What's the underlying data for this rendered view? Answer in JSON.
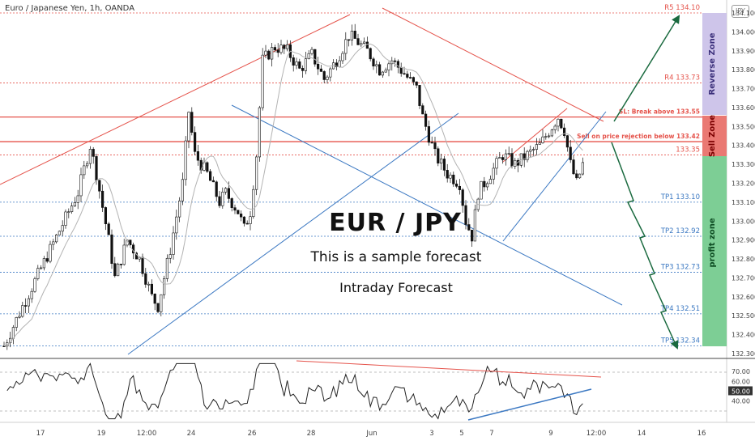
{
  "header": {
    "pair": "Euro / Japanese Yen, 1h, OANDA",
    "logo": "JPY"
  },
  "texts": {
    "main_title": "EUR / JPY",
    "subtitle": "This is a sample forecast",
    "forecast_type": "Intraday Forecast"
  },
  "zones": {
    "reverse": "Reverse Zone",
    "sell": "Sell Zone",
    "profit": "profit zone"
  },
  "colors": {
    "resistance": "#e5534b",
    "support": "#3b78c2",
    "profit_zone": "#3aa55d",
    "reverse_zone": "#9d8ed0",
    "sell_zone": "#e5534b",
    "forecast_arrow": "#1a6a3f"
  },
  "chart_data": [
    {
      "type": "line",
      "instrument": "Euro / Japanese Yen, 1h, OANDA",
      "price_axis": {
        "ticks": [
          "134.100",
          "134.000",
          "133.900",
          "133.800",
          "133.700",
          "133.600",
          "133.500",
          "133.400",
          "133.300",
          "133.200",
          "133.100",
          "133.000",
          "132.900",
          "132.800",
          "132.700",
          "132.600",
          "132.500",
          "132.400",
          "132.300"
        ],
        "range": [
          132.28,
          134.15
        ]
      },
      "time_axis": {
        "ticks": [
          "17",
          "19",
          "12:00",
          "24",
          "26",
          "28",
          "Jun",
          "3",
          "5",
          "7",
          "9",
          "12:00",
          "14",
          "16"
        ]
      },
      "price_path": [
        [
          0,
          132.34
        ],
        [
          3,
          132.55
        ],
        [
          6,
          132.75
        ],
        [
          9,
          132.95
        ],
        [
          12,
          133.15
        ],
        [
          14,
          133.4
        ],
        [
          15,
          133.25
        ],
        [
          17,
          132.9
        ],
        [
          18,
          132.7
        ],
        [
          20,
          132.9
        ],
        [
          22,
          132.8
        ],
        [
          24,
          132.6
        ],
        [
          25,
          132.55
        ],
        [
          27,
          132.85
        ],
        [
          29,
          133.2
        ],
        [
          30,
          133.58
        ],
        [
          31,
          133.35
        ],
        [
          33,
          133.25
        ],
        [
          35,
          133.1
        ],
        [
          36,
          133.15
        ],
        [
          38,
          133.05
        ],
        [
          39,
          132.96
        ],
        [
          40,
          133.05
        ],
        [
          41,
          133.35
        ],
        [
          42,
          133.85
        ],
        [
          44,
          133.92
        ],
        [
          46,
          133.9
        ],
        [
          48,
          133.8
        ],
        [
          50,
          133.88
        ],
        [
          52,
          133.75
        ],
        [
          54,
          133.85
        ],
        [
          56,
          133.98
        ],
        [
          57,
          133.96
        ],
        [
          59,
          133.9
        ],
        [
          61,
          133.8
        ],
        [
          63,
          133.85
        ],
        [
          65,
          133.78
        ],
        [
          67,
          133.7
        ],
        [
          68,
          133.55
        ],
        [
          70,
          133.35
        ],
        [
          72,
          133.25
        ],
        [
          74,
          133.2
        ],
        [
          75,
          133.0
        ],
        [
          76,
          132.92
        ],
        [
          77,
          133.15
        ],
        [
          79,
          133.25
        ],
        [
          81,
          133.35
        ],
        [
          83,
          133.3
        ],
        [
          85,
          133.35
        ],
        [
          87,
          133.4
        ],
        [
          89,
          133.5
        ],
        [
          90,
          133.55
        ],
        [
          91,
          133.48
        ],
        [
          92,
          133.3
        ],
        [
          93,
          133.2
        ],
        [
          94,
          133.3
        ]
      ],
      "levels": [
        {
          "label": "R5 134.10",
          "value": 134.1,
          "color": "#e5534b"
        },
        {
          "label": "R4 133.73",
          "value": 133.73,
          "color": "#e5534b"
        },
        {
          "label": "SL: Break above 133.55",
          "value": 133.55,
          "color": "#e5534b"
        },
        {
          "label": "Sell on price rejection below 133.42",
          "value": 133.42,
          "color": "#e5534b"
        },
        {
          "label": "133.35",
          "value": 133.35,
          "color": "#e5534b"
        },
        {
          "label": "TP1 133.10",
          "value": 133.1,
          "color": "#3b78c2"
        },
        {
          "label": "TP2 132.92",
          "value": 132.92,
          "color": "#3b78c2"
        },
        {
          "label": "TP3 132.73",
          "value": 132.73,
          "color": "#3b78c2"
        },
        {
          "label": "TP4 132.51",
          "value": 132.51,
          "color": "#3b78c2"
        },
        {
          "label": "TP5 132.34",
          "value": 132.34,
          "color": "#3b78c2"
        }
      ],
      "grid": false,
      "legend": "none"
    },
    {
      "type": "line",
      "indicator": "RSI",
      "axis_ticks": [
        "70.00",
        "60.00",
        "50.00",
        "40.00"
      ],
      "range": [
        20,
        80
      ],
      "current_value_label": "50.00"
    }
  ]
}
